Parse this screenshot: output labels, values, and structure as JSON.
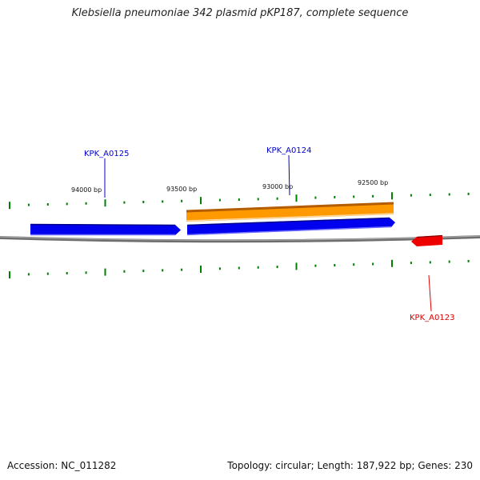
{
  "title": "Klebsiella pneumoniae 342 plasmid pKP187, complete sequence",
  "footer": {
    "accession": "Accession: NC_011282",
    "summary": "Topology: circular; Length: 187,922 bp; Genes: 230"
  },
  "scale_labels": [
    "94000 bp",
    "93500 bp",
    "93000 bp",
    "92500 bp"
  ],
  "genes": [
    {
      "name": "KPK_A0125",
      "color": "#0000cc"
    },
    {
      "name": "KPK_A0124",
      "color": "#0000cc"
    },
    {
      "name": "KPK_A0123",
      "color": "#dd0000"
    }
  ],
  "colors": {
    "backbone": "#808080",
    "forward_cds": "#0000ee",
    "forward_gene": "#ff9900",
    "reverse_cds": "#ee0000",
    "ticks": "#008000"
  }
}
